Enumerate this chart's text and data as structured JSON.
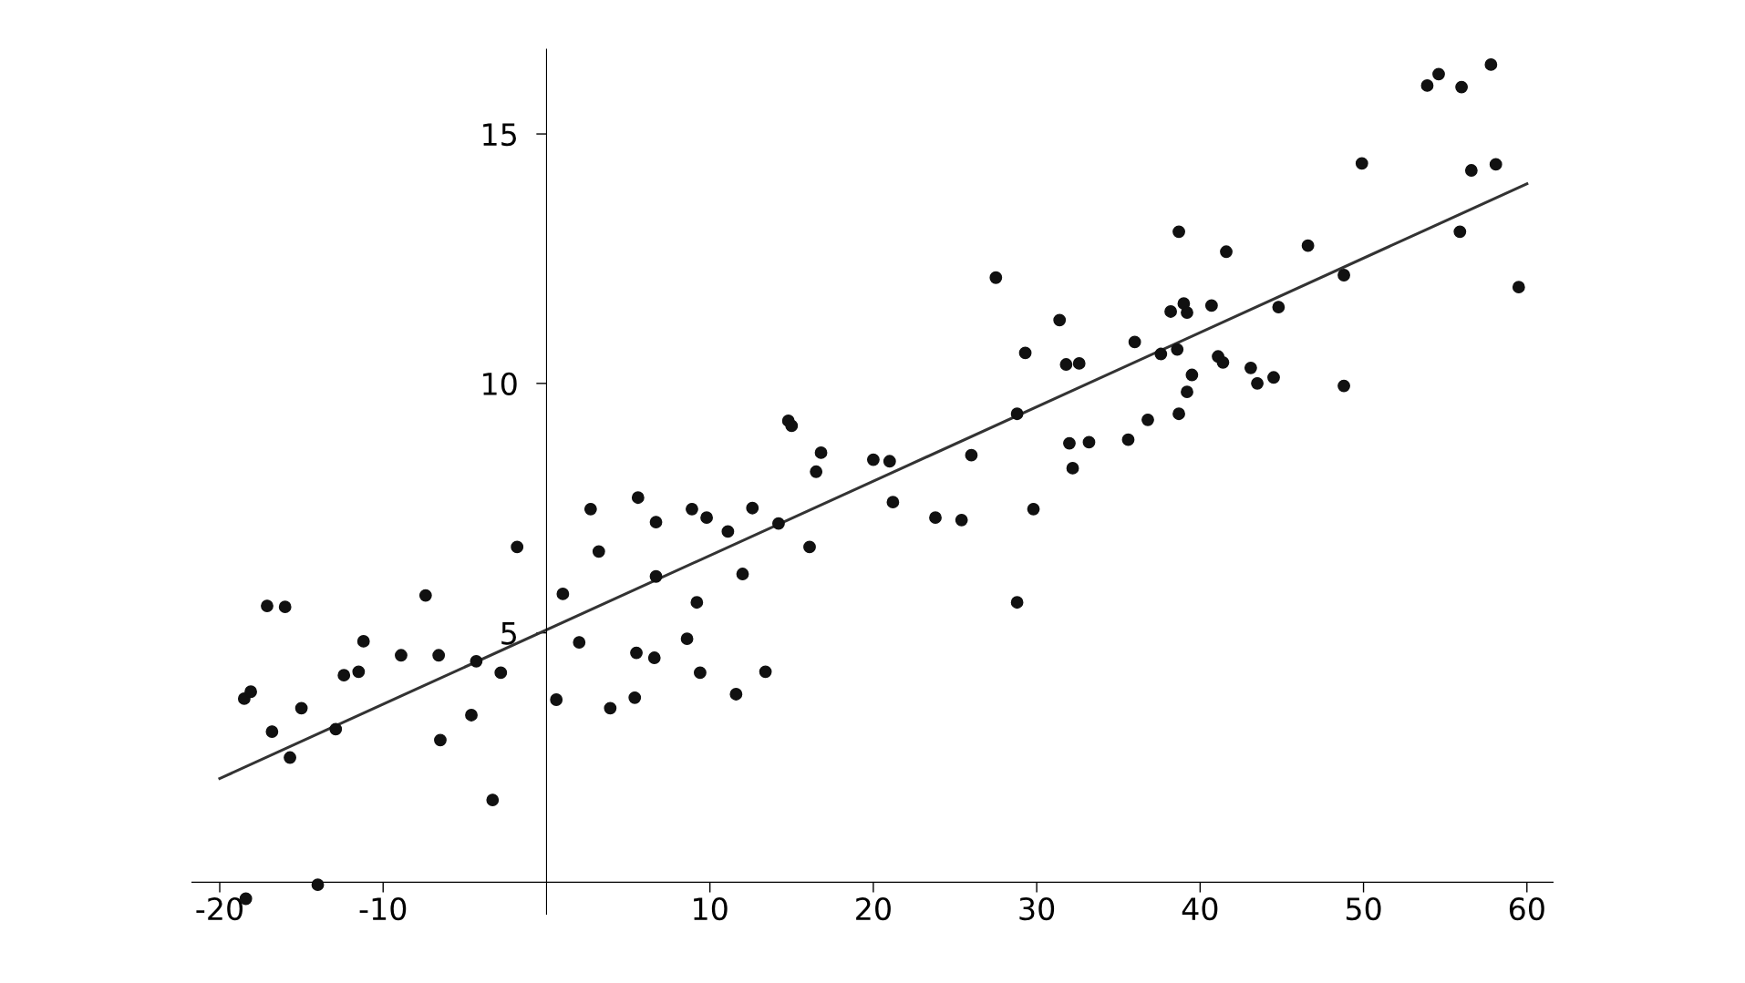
{
  "chart_data": {
    "type": "scatter",
    "xlim": [
      -21.7,
      61.6
    ],
    "ylim": [
      -0.64,
      16.7
    ],
    "xticks": [
      -20,
      -10,
      10,
      20,
      30,
      40,
      50,
      60
    ],
    "yticks": [
      5,
      10,
      15
    ],
    "grid": false,
    "marker": "circle",
    "series": [
      {
        "color": "#111111",
        "x": [
          -18.4,
          -18.5,
          -18.1,
          -17.1,
          -16.8,
          -16.0,
          -15.7,
          -15.0,
          -14.0,
          -12.9,
          -12.4,
          -11.5,
          -11.2,
          -8.9,
          -7.4,
          -6.6,
          -6.5,
          -4.6,
          -4.3,
          -3.3,
          -2.8,
          -1.8,
          0.6,
          1.0,
          2.0,
          2.7,
          3.2,
          3.9,
          5.4,
          5.5,
          5.6,
          6.7,
          6.7,
          6.6,
          8.6,
          8.9,
          9.2,
          9.4,
          9.8,
          11.1,
          11.6,
          12.0,
          12.6,
          13.4,
          14.2,
          14.8,
          15.0,
          16.1,
          16.5,
          16.8,
          20.0,
          21.0,
          21.2,
          23.8,
          25.4,
          26.0,
          27.5,
          28.8,
          28.8,
          29.3,
          29.8,
          31.4,
          31.8,
          32.0,
          32.2,
          32.6,
          33.2,
          35.6,
          36.0,
          36.8,
          37.6,
          38.2,
          38.6,
          38.7,
          38.7,
          39.0,
          39.2,
          39.2,
          39.5,
          40.7,
          41.1,
          41.4,
          41.6,
          43.1,
          43.5,
          44.5,
          44.8,
          46.6,
          48.8,
          48.8,
          49.9,
          53.9,
          54.6,
          55.9,
          56.0,
          56.6,
          57.8,
          58.1,
          59.5
        ],
        "values": [
          -0.33,
          3.68,
          3.82,
          5.54,
          3.02,
          5.52,
          2.5,
          3.49,
          -0.05,
          3.07,
          4.15,
          4.22,
          4.83,
          4.55,
          5.75,
          4.55,
          2.85,
          3.35,
          4.43,
          1.65,
          4.2,
          6.72,
          3.66,
          5.78,
          4.81,
          7.48,
          6.63,
          3.49,
          3.7,
          4.6,
          7.71,
          7.22,
          6.13,
          4.5,
          4.88,
          7.48,
          5.61,
          4.2,
          7.31,
          7.03,
          3.77,
          6.18,
          7.5,
          4.22,
          7.19,
          9.25,
          9.15,
          6.72,
          8.23,
          8.61,
          8.47,
          8.44,
          7.62,
          7.31,
          7.26,
          8.56,
          12.12,
          5.61,
          9.39,
          10.61,
          7.48,
          11.27,
          10.38,
          8.8,
          8.3,
          10.4,
          8.82,
          8.87,
          10.83,
          9.27,
          10.59,
          11.44,
          10.68,
          13.04,
          9.39,
          11.6,
          11.42,
          9.83,
          10.17,
          11.56,
          10.54,
          10.42,
          12.64,
          10.31,
          10.0,
          10.12,
          11.53,
          12.76,
          12.17,
          9.95,
          14.41,
          15.97,
          16.2,
          13.04,
          15.94,
          14.27,
          16.39,
          14.39,
          11.93
        ]
      },
      {
        "type": "line",
        "color": "#333333",
        "line_style": "solid",
        "marker": "none",
        "x": [
          -20,
          60
        ],
        "values": [
          2.08,
          14.0
        ]
      }
    ]
  }
}
